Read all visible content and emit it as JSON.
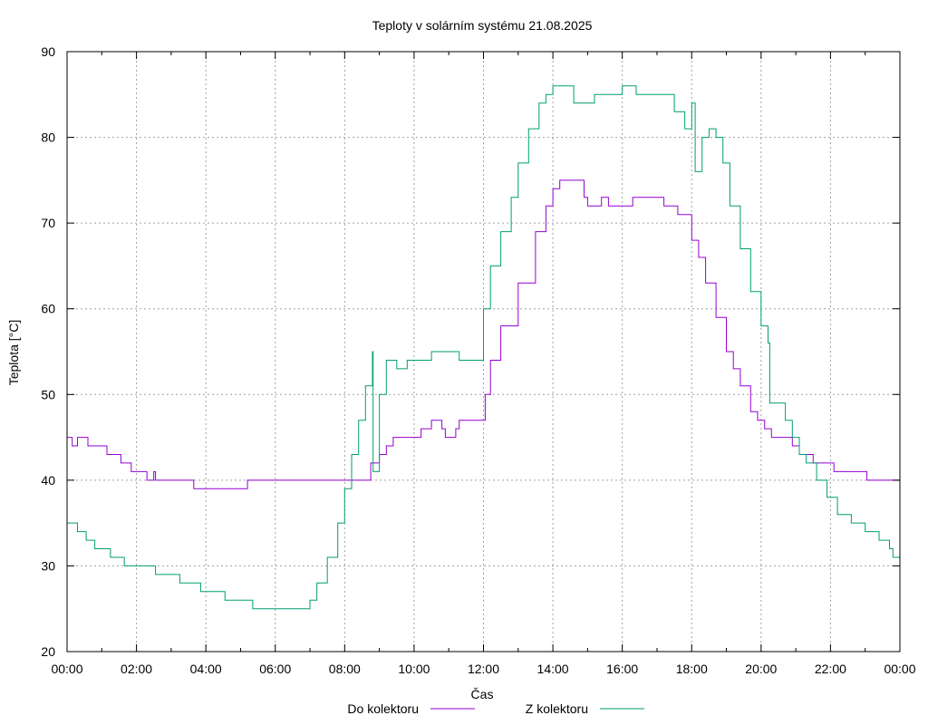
{
  "chart_data": {
    "type": "line",
    "title": "Teploty v solárním systému 21.08.2025",
    "xlabel": "Čas",
    "ylabel": "Teplota [°C]",
    "ylim": [
      20,
      90
    ],
    "xlim_hours": [
      0,
      24
    ],
    "grid": true,
    "legend_position": "bottom-center",
    "x_tick_labels": [
      "00:00",
      "02:00",
      "04:00",
      "06:00",
      "08:00",
      "10:00",
      "12:00",
      "14:00",
      "16:00",
      "18:00",
      "20:00",
      "22:00",
      "00:00"
    ],
    "y_tick_labels": [
      "20",
      "30",
      "40",
      "50",
      "60",
      "70",
      "80",
      "90"
    ],
    "series": [
      {
        "name": "Do kolektoru",
        "color": "#9400d3",
        "points": [
          [
            0.0,
            45
          ],
          [
            0.15,
            44
          ],
          [
            0.3,
            45
          ],
          [
            0.6,
            44
          ],
          [
            1.1,
            44
          ],
          [
            1.15,
            43
          ],
          [
            1.5,
            43
          ],
          [
            1.55,
            42
          ],
          [
            1.8,
            42
          ],
          [
            1.85,
            41
          ],
          [
            2.2,
            41
          ],
          [
            2.3,
            40
          ],
          [
            2.5,
            41
          ],
          [
            2.55,
            40
          ],
          [
            3.6,
            40
          ],
          [
            3.65,
            39
          ],
          [
            5.1,
            39
          ],
          [
            5.2,
            40
          ],
          [
            8.7,
            40
          ],
          [
            8.75,
            42
          ],
          [
            9.0,
            43
          ],
          [
            9.2,
            44
          ],
          [
            9.4,
            45
          ],
          [
            10.0,
            45
          ],
          [
            10.2,
            46
          ],
          [
            10.5,
            47
          ],
          [
            10.8,
            46
          ],
          [
            10.9,
            45
          ],
          [
            11.2,
            46
          ],
          [
            11.3,
            47
          ],
          [
            12.0,
            47
          ],
          [
            12.05,
            50
          ],
          [
            12.2,
            54
          ],
          [
            12.5,
            58
          ],
          [
            13.0,
            63
          ],
          [
            13.5,
            69
          ],
          [
            13.8,
            72
          ],
          [
            14.0,
            74
          ],
          [
            14.2,
            75
          ],
          [
            14.8,
            75
          ],
          [
            14.9,
            73
          ],
          [
            15.0,
            72
          ],
          [
            15.4,
            73
          ],
          [
            15.6,
            72
          ],
          [
            16.2,
            72
          ],
          [
            16.3,
            73
          ],
          [
            16.6,
            73
          ],
          [
            17.0,
            73
          ],
          [
            17.2,
            72
          ],
          [
            17.5,
            72
          ],
          [
            17.6,
            71
          ],
          [
            17.9,
            71
          ],
          [
            18.0,
            68
          ],
          [
            18.2,
            66
          ],
          [
            18.4,
            63
          ],
          [
            18.7,
            59
          ],
          [
            19.0,
            55
          ],
          [
            19.2,
            53
          ],
          [
            19.4,
            51
          ],
          [
            19.7,
            48
          ],
          [
            19.9,
            47
          ],
          [
            20.1,
            46
          ],
          [
            20.3,
            45
          ],
          [
            20.7,
            45
          ],
          [
            20.9,
            44
          ],
          [
            21.1,
            43
          ],
          [
            21.4,
            43
          ],
          [
            21.5,
            42
          ],
          [
            22.0,
            42
          ],
          [
            22.1,
            41
          ],
          [
            23.0,
            41
          ],
          [
            23.05,
            40
          ],
          [
            24.0,
            40
          ]
        ]
      },
      {
        "name": "Z kolektoru",
        "color": "#009e73",
        "points": [
          [
            0.0,
            35
          ],
          [
            0.25,
            35
          ],
          [
            0.3,
            34
          ],
          [
            0.5,
            34
          ],
          [
            0.55,
            33
          ],
          [
            0.75,
            33
          ],
          [
            0.8,
            32
          ],
          [
            1.2,
            32
          ],
          [
            1.25,
            31
          ],
          [
            1.6,
            31
          ],
          [
            1.65,
            30
          ],
          [
            2.5,
            30
          ],
          [
            2.55,
            29
          ],
          [
            3.2,
            29
          ],
          [
            3.25,
            28
          ],
          [
            3.8,
            28
          ],
          [
            3.85,
            27
          ],
          [
            4.5,
            27
          ],
          [
            4.55,
            26
          ],
          [
            5.3,
            26
          ],
          [
            5.35,
            25
          ],
          [
            6.8,
            25
          ],
          [
            7.0,
            26
          ],
          [
            7.2,
            28
          ],
          [
            7.5,
            31
          ],
          [
            7.8,
            35
          ],
          [
            8.0,
            39
          ],
          [
            8.2,
            43
          ],
          [
            8.4,
            47
          ],
          [
            8.6,
            51
          ],
          [
            8.8,
            55
          ],
          [
            8.82,
            41
          ],
          [
            9.0,
            50
          ],
          [
            9.2,
            54
          ],
          [
            9.5,
            53
          ],
          [
            9.8,
            54
          ],
          [
            10.0,
            54
          ],
          [
            10.5,
            55
          ],
          [
            11.0,
            55
          ],
          [
            11.3,
            54
          ],
          [
            11.9,
            54
          ],
          [
            12.0,
            60
          ],
          [
            12.2,
            65
          ],
          [
            12.5,
            69
          ],
          [
            12.8,
            73
          ],
          [
            13.0,
            77
          ],
          [
            13.3,
            81
          ],
          [
            13.6,
            84
          ],
          [
            13.8,
            85
          ],
          [
            14.0,
            86
          ],
          [
            14.5,
            86
          ],
          [
            14.6,
            84
          ],
          [
            14.8,
            84
          ],
          [
            15.2,
            85
          ],
          [
            15.6,
            85
          ],
          [
            16.0,
            86
          ],
          [
            16.4,
            85
          ],
          [
            16.8,
            85
          ],
          [
            17.2,
            85
          ],
          [
            17.5,
            83
          ],
          [
            17.8,
            81
          ],
          [
            18.0,
            84
          ],
          [
            18.1,
            76
          ],
          [
            18.3,
            80
          ],
          [
            18.5,
            81
          ],
          [
            18.7,
            80
          ],
          [
            18.9,
            77
          ],
          [
            19.1,
            72
          ],
          [
            19.4,
            67
          ],
          [
            19.7,
            62
          ],
          [
            20.0,
            58
          ],
          [
            20.2,
            56
          ],
          [
            20.25,
            49
          ],
          [
            20.5,
            49
          ],
          [
            20.7,
            47
          ],
          [
            20.9,
            45
          ],
          [
            21.1,
            43
          ],
          [
            21.3,
            42
          ],
          [
            21.6,
            40
          ],
          [
            21.9,
            38
          ],
          [
            22.2,
            36
          ],
          [
            22.6,
            35
          ],
          [
            23.0,
            34
          ],
          [
            23.4,
            33
          ],
          [
            23.7,
            32
          ],
          [
            23.8,
            31
          ],
          [
            24.0,
            30
          ]
        ]
      }
    ]
  }
}
